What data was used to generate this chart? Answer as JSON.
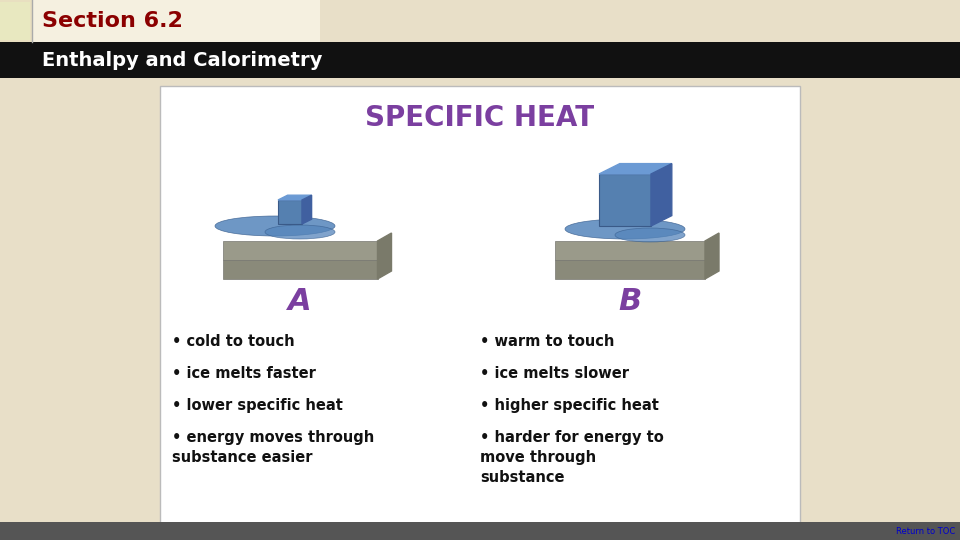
{
  "bg_color": "#e8dfc8",
  "header_bg": "#f5f0e0",
  "header_text": "Section 6.2",
  "header_text_color": "#8b0000",
  "header_tab_color": "#e8dfc0",
  "subheader_bg": "#111111",
  "subheader_text": "Enthalpy and Calorimetry",
  "subheader_text_color": "#ffffff",
  "panel_bg": "#ffffff",
  "panel_border": "#cccccc",
  "specific_heat_title": "SPECIFIC HEAT",
  "specific_heat_color": "#7b3fa0",
  "label_A": "A",
  "label_B": "B",
  "label_color": "#7b3fa0",
  "bullet_A": [
    "cold to touch",
    "ice melts faster",
    "lower specific heat",
    "energy moves through\nsubstance easier"
  ],
  "bullet_B": [
    "warm to touch",
    "ice melts slower",
    "higher specific heat",
    "harder for energy to\nmove through\nsubstance"
  ],
  "footer_text": "Return to TOC",
  "footer_color": "#0000cc",
  "footer_bg": "#555555"
}
